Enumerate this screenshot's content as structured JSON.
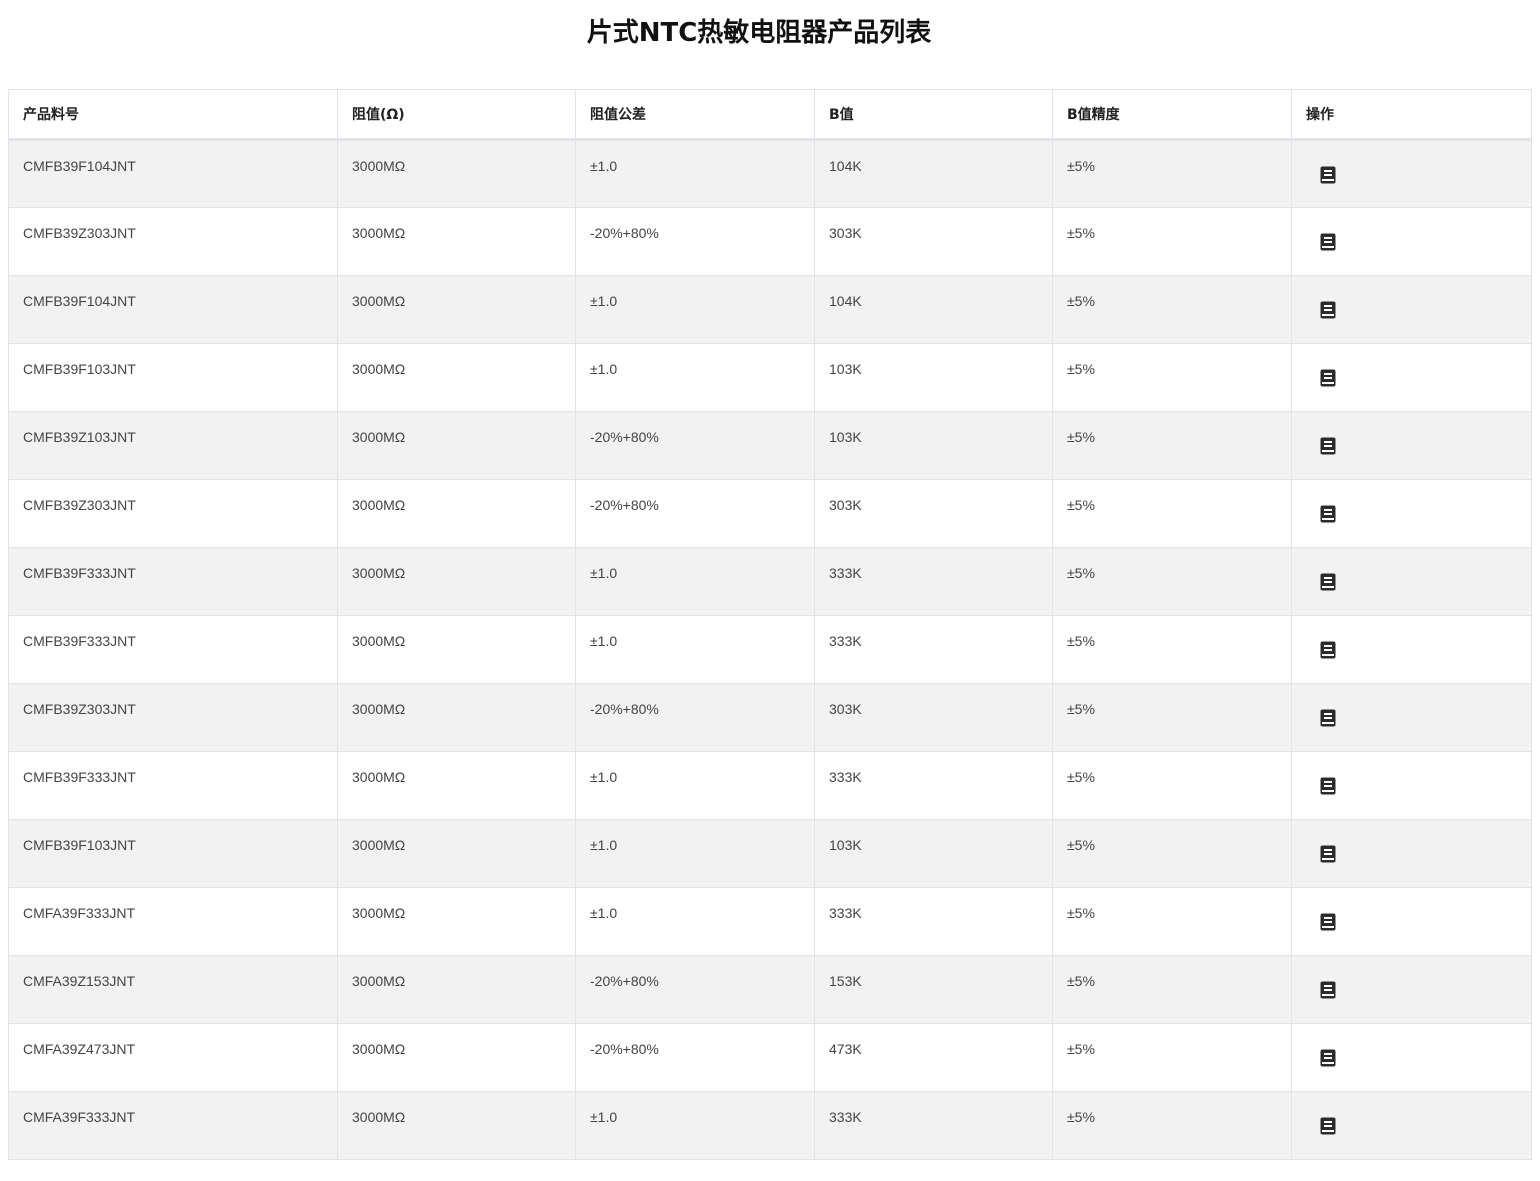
{
  "title": "片式NTC热敏电阻器产品列表",
  "columns": [
    "产品料号",
    "阻值(Ω)",
    "阻值公差",
    "B值",
    "B值精度",
    "操作"
  ],
  "action_icon": "book-icon",
  "rows": [
    [
      "CMFB39F104JNT",
      "3000MΩ",
      "±1.0",
      "104K",
      "±5%"
    ],
    [
      "CMFB39Z303JNT",
      "3000MΩ",
      "-20%+80%",
      "303K",
      "±5%"
    ],
    [
      "CMFB39F104JNT",
      "3000MΩ",
      "±1.0",
      "104K",
      "±5%"
    ],
    [
      "CMFB39F103JNT",
      "3000MΩ",
      "±1.0",
      "103K",
      "±5%"
    ],
    [
      "CMFB39Z103JNT",
      "3000MΩ",
      "-20%+80%",
      "103K",
      "±5%"
    ],
    [
      "CMFB39Z303JNT",
      "3000MΩ",
      "-20%+80%",
      "303K",
      "±5%"
    ],
    [
      "CMFB39F333JNT",
      "3000MΩ",
      "±1.0",
      "333K",
      "±5%"
    ],
    [
      "CMFB39F333JNT",
      "3000MΩ",
      "±1.0",
      "333K",
      "±5%"
    ],
    [
      "CMFB39Z303JNT",
      "3000MΩ",
      "-20%+80%",
      "303K",
      "±5%"
    ],
    [
      "CMFB39F333JNT",
      "3000MΩ",
      "±1.0",
      "333K",
      "±5%"
    ],
    [
      "CMFB39F103JNT",
      "3000MΩ",
      "±1.0",
      "103K",
      "±5%"
    ],
    [
      "CMFA39F333JNT",
      "3000MΩ",
      "±1.0",
      "333K",
      "±5%"
    ],
    [
      "CMFA39Z153JNT",
      "3000MΩ",
      "-20%+80%",
      "153K",
      "±5%"
    ],
    [
      "CMFA39Z473JNT",
      "3000MΩ",
      "-20%+80%",
      "473K",
      "±5%"
    ],
    [
      "CMFA39F333JNT",
      "3000MΩ",
      "±1.0",
      "333K",
      "±5%"
    ]
  ]
}
